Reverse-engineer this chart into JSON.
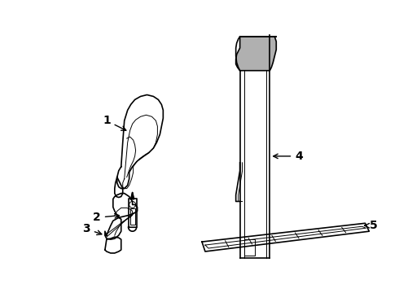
{
  "background_color": "#ffffff",
  "line_color": "#000000",
  "label_color": "#000000",
  "fig_width": 4.9,
  "fig_height": 3.6,
  "dpi": 100
}
